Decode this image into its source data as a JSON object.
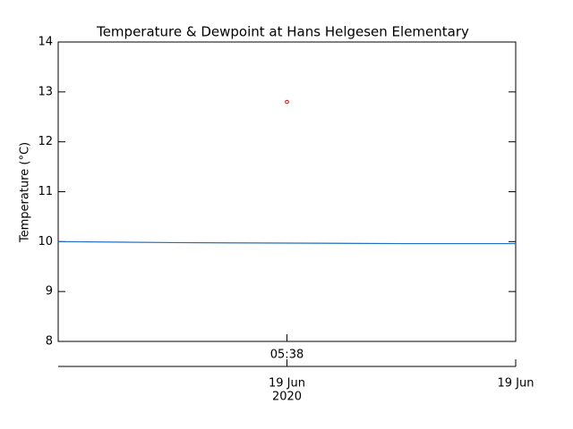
{
  "chart_data": {
    "type": "line",
    "title": "Temperature & Dewpoint at Hans Helgesen Elementary",
    "y_label": "Temperature (°C)",
    "categories": [
      null,
      null,
      "05:38",
      null,
      null
    ],
    "date_labels": [
      null,
      null,
      "19 Jun",
      null,
      "19 Jun"
    ],
    "year_labels": [
      null,
      null,
      "2020",
      null,
      null
    ],
    "series": [
      {
        "color": "#1f6fc4",
        "values": [
          10.0,
          9.98,
          9.97,
          9.96,
          9.96
        ]
      },
      {
        "color": "#dd0000",
        "marker": "circle",
        "values": [
          null,
          null,
          12.8,
          null,
          null
        ]
      }
    ],
    "ylim": [
      8,
      14
    ],
    "yticks": [
      8,
      9,
      10,
      11,
      12,
      13,
      14
    ]
  }
}
